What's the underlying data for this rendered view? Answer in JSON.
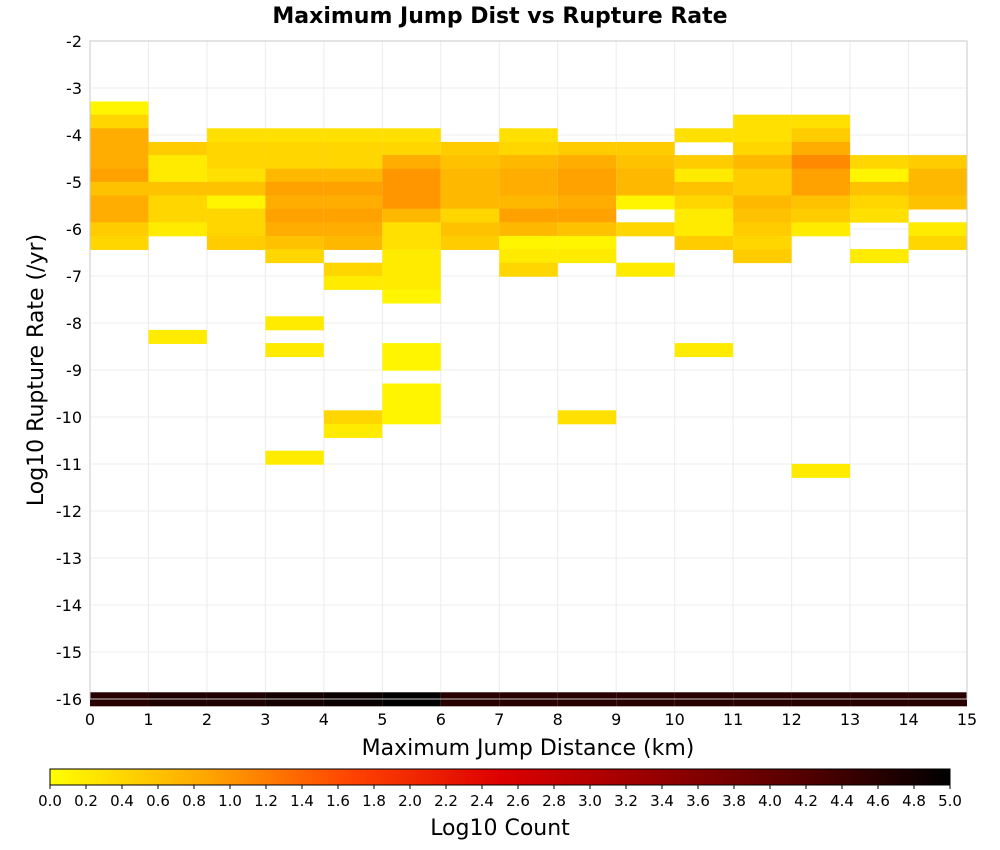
{
  "chart_data": {
    "type": "heatmap",
    "title": "Maximum Jump Dist vs Rupture Rate",
    "xlabel": "Maximum Jump Distance (km)",
    "ylabel": "Log10 Rupture Rate (/yr)",
    "xlim": [
      0,
      15
    ],
    "ylim": [
      -16,
      -2
    ],
    "x_ticks": [
      "0",
      "1",
      "2",
      "3",
      "4",
      "5",
      "6",
      "7",
      "8",
      "9",
      "10",
      "11",
      "12",
      "13",
      "14",
      "15"
    ],
    "y_ticks": [
      "-2",
      "-3",
      "-4",
      "-5",
      "-6",
      "-7",
      "-8",
      "-9",
      "-10",
      "-11",
      "-12",
      "-13",
      "-14",
      "-15",
      "-16"
    ],
    "grid": true,
    "x_bin_width": 1,
    "y_bin_height": 0.2857,
    "colorbar": {
      "label": "Log10 Count",
      "range": [
        0,
        5
      ],
      "ticks": [
        "0.0",
        "0.2",
        "0.4",
        "0.6",
        "0.8",
        "1.0",
        "1.2",
        "1.4",
        "1.6",
        "1.8",
        "2.0",
        "2.2",
        "2.4",
        "2.6",
        "2.8",
        "3.0",
        "3.2",
        "3.4",
        "3.6",
        "3.8",
        "4.0",
        "4.2",
        "4.4",
        "4.6",
        "4.8",
        "5.0"
      ],
      "colors": [
        "#ffff00",
        "#ffaa00",
        "#ff4400",
        "#dd0000",
        "#990000",
        "#550000",
        "#000000"
      ]
    },
    "cells": [
      {
        "x": 0,
        "y": -3.43,
        "v": 0.1
      },
      {
        "x": 0,
        "y": -3.71,
        "v": 0.4
      },
      {
        "x": 0,
        "y": -4.0,
        "v": 0.8
      },
      {
        "x": 0,
        "y": -4.29,
        "v": 0.8
      },
      {
        "x": 0,
        "y": -4.57,
        "v": 0.8
      },
      {
        "x": 0,
        "y": -4.86,
        "v": 0.9
      },
      {
        "x": 0,
        "y": -5.14,
        "v": 0.6
      },
      {
        "x": 0,
        "y": -5.43,
        "v": 0.8
      },
      {
        "x": 0,
        "y": -5.71,
        "v": 0.8
      },
      {
        "x": 0,
        "y": -6.0,
        "v": 0.5
      },
      {
        "x": 0,
        "y": -6.29,
        "v": 0.4
      },
      {
        "x": 0,
        "y": -16.0,
        "v": 4.6
      },
      {
        "x": 1,
        "y": -4.29,
        "v": 0.5
      },
      {
        "x": 1,
        "y": -4.57,
        "v": 0.2
      },
      {
        "x": 1,
        "y": -4.86,
        "v": 0.2
      },
      {
        "x": 1,
        "y": -5.14,
        "v": 0.6
      },
      {
        "x": 1,
        "y": -5.43,
        "v": 0.4
      },
      {
        "x": 1,
        "y": -5.71,
        "v": 0.4
      },
      {
        "x": 1,
        "y": -6.0,
        "v": 0.2
      },
      {
        "x": 1,
        "y": -8.29,
        "v": 0.2
      },
      {
        "x": 1,
        "y": -16.0,
        "v": 4.7
      },
      {
        "x": 2,
        "y": -4.0,
        "v": 0.3
      },
      {
        "x": 2,
        "y": -4.29,
        "v": 0.4
      },
      {
        "x": 2,
        "y": -4.57,
        "v": 0.4
      },
      {
        "x": 2,
        "y": -4.86,
        "v": 0.3
      },
      {
        "x": 2,
        "y": -5.14,
        "v": 0.6
      },
      {
        "x": 2,
        "y": -5.43,
        "v": 0.1
      },
      {
        "x": 2,
        "y": -5.71,
        "v": 0.4
      },
      {
        "x": 2,
        "y": -6.0,
        "v": 0.4
      },
      {
        "x": 2,
        "y": -6.29,
        "v": 0.5
      },
      {
        "x": 2,
        "y": -16.0,
        "v": 4.7
      },
      {
        "x": 3,
        "y": -4.0,
        "v": 0.3
      },
      {
        "x": 3,
        "y": -4.29,
        "v": 0.4
      },
      {
        "x": 3,
        "y": -4.57,
        "v": 0.4
      },
      {
        "x": 3,
        "y": -4.86,
        "v": 0.7
      },
      {
        "x": 3,
        "y": -5.14,
        "v": 0.9
      },
      {
        "x": 3,
        "y": -5.43,
        "v": 0.8
      },
      {
        "x": 3,
        "y": -5.71,
        "v": 0.9
      },
      {
        "x": 3,
        "y": -6.0,
        "v": 0.8
      },
      {
        "x": 3,
        "y": -6.29,
        "v": 0.6
      },
      {
        "x": 3,
        "y": -6.57,
        "v": 0.4
      },
      {
        "x": 3,
        "y": -8.0,
        "v": 0.2
      },
      {
        "x": 3,
        "y": -8.57,
        "v": 0.2
      },
      {
        "x": 3,
        "y": -10.86,
        "v": 0.2
      },
      {
        "x": 3,
        "y": -16.0,
        "v": 4.8
      },
      {
        "x": 4,
        "y": -4.0,
        "v": 0.3
      },
      {
        "x": 4,
        "y": -4.29,
        "v": 0.4
      },
      {
        "x": 4,
        "y": -4.57,
        "v": 0.4
      },
      {
        "x": 4,
        "y": -4.86,
        "v": 0.7
      },
      {
        "x": 4,
        "y": -5.14,
        "v": 0.9
      },
      {
        "x": 4,
        "y": -5.43,
        "v": 0.8
      },
      {
        "x": 4,
        "y": -5.71,
        "v": 0.9
      },
      {
        "x": 4,
        "y": -6.0,
        "v": 0.8
      },
      {
        "x": 4,
        "y": -6.29,
        "v": 0.7
      },
      {
        "x": 4,
        "y": -6.86,
        "v": 0.4
      },
      {
        "x": 4,
        "y": -7.14,
        "v": 0.2
      },
      {
        "x": 4,
        "y": -10.0,
        "v": 0.4
      },
      {
        "x": 4,
        "y": -10.29,
        "v": 0.2
      },
      {
        "x": 4,
        "y": -16.0,
        "v": 4.9
      },
      {
        "x": 5,
        "y": -4.0,
        "v": 0.3
      },
      {
        "x": 5,
        "y": -4.29,
        "v": 0.4
      },
      {
        "x": 5,
        "y": -4.57,
        "v": 0.8
      },
      {
        "x": 5,
        "y": -4.86,
        "v": 1.0
      },
      {
        "x": 5,
        "y": -5.14,
        "v": 1.0
      },
      {
        "x": 5,
        "y": -5.43,
        "v": 1.0
      },
      {
        "x": 5,
        "y": -5.71,
        "v": 0.7
      },
      {
        "x": 5,
        "y": -6.0,
        "v": 0.3
      },
      {
        "x": 5,
        "y": -6.29,
        "v": 0.3
      },
      {
        "x": 5,
        "y": -6.57,
        "v": 0.2
      },
      {
        "x": 5,
        "y": -6.86,
        "v": 0.2
      },
      {
        "x": 5,
        "y": -7.14,
        "v": 0.2
      },
      {
        "x": 5,
        "y": -7.43,
        "v": 0.1
      },
      {
        "x": 5,
        "y": -8.57,
        "v": 0.1
      },
      {
        "x": 5,
        "y": -8.86,
        "v": 0.1
      },
      {
        "x": 5,
        "y": -9.43,
        "v": 0.1
      },
      {
        "x": 5,
        "y": -9.71,
        "v": 0.1
      },
      {
        "x": 5,
        "y": -10.0,
        "v": 0.1
      },
      {
        "x": 5,
        "y": -16.0,
        "v": 5.0
      },
      {
        "x": 6,
        "y": -4.29,
        "v": 0.5
      },
      {
        "x": 6,
        "y": -4.57,
        "v": 0.6
      },
      {
        "x": 6,
        "y": -4.86,
        "v": 0.7
      },
      {
        "x": 6,
        "y": -5.14,
        "v": 0.7
      },
      {
        "x": 6,
        "y": -5.43,
        "v": 0.7
      },
      {
        "x": 6,
        "y": -5.71,
        "v": 0.4
      },
      {
        "x": 6,
        "y": -6.0,
        "v": 0.6
      },
      {
        "x": 6,
        "y": -6.29,
        "v": 0.5
      },
      {
        "x": 6,
        "y": -16.0,
        "v": 4.6
      },
      {
        "x": 7,
        "y": -4.0,
        "v": 0.3
      },
      {
        "x": 7,
        "y": -4.29,
        "v": 0.4
      },
      {
        "x": 7,
        "y": -4.57,
        "v": 0.7
      },
      {
        "x": 7,
        "y": -4.86,
        "v": 0.8
      },
      {
        "x": 7,
        "y": -5.14,
        "v": 0.8
      },
      {
        "x": 7,
        "y": -5.43,
        "v": 0.7
      },
      {
        "x": 7,
        "y": -5.71,
        "v": 0.9
      },
      {
        "x": 7,
        "y": -6.0,
        "v": 0.7
      },
      {
        "x": 7,
        "y": -6.29,
        "v": 0.1
      },
      {
        "x": 7,
        "y": -6.57,
        "v": 0.2
      },
      {
        "x": 7,
        "y": -6.86,
        "v": 0.4
      },
      {
        "x": 7,
        "y": -16.0,
        "v": 4.6
      },
      {
        "x": 8,
        "y": -4.29,
        "v": 0.5
      },
      {
        "x": 8,
        "y": -4.57,
        "v": 0.8
      },
      {
        "x": 8,
        "y": -4.86,
        "v": 0.9
      },
      {
        "x": 8,
        "y": -5.14,
        "v": 0.9
      },
      {
        "x": 8,
        "y": -5.43,
        "v": 0.8
      },
      {
        "x": 8,
        "y": -5.71,
        "v": 0.9
      },
      {
        "x": 8,
        "y": -6.0,
        "v": 0.6
      },
      {
        "x": 8,
        "y": -6.29,
        "v": 0.1
      },
      {
        "x": 8,
        "y": -6.57,
        "v": 0.2
      },
      {
        "x": 8,
        "y": -10.0,
        "v": 0.3
      },
      {
        "x": 8,
        "y": -16.0,
        "v": 4.6
      },
      {
        "x": 9,
        "y": -4.29,
        "v": 0.5
      },
      {
        "x": 9,
        "y": -4.57,
        "v": 0.6
      },
      {
        "x": 9,
        "y": -4.86,
        "v": 0.7
      },
      {
        "x": 9,
        "y": -5.14,
        "v": 0.7
      },
      {
        "x": 9,
        "y": -5.43,
        "v": 0.1
      },
      {
        "x": 9,
        "y": -6.0,
        "v": 0.4
      },
      {
        "x": 9,
        "y": -6.86,
        "v": 0.2
      },
      {
        "x": 9,
        "y": -16.0,
        "v": 4.6
      },
      {
        "x": 10,
        "y": -4.0,
        "v": 0.3
      },
      {
        "x": 10,
        "y": -4.57,
        "v": 0.5
      },
      {
        "x": 10,
        "y": -4.86,
        "v": 0.2
      },
      {
        "x": 10,
        "y": -5.14,
        "v": 0.6
      },
      {
        "x": 10,
        "y": -5.43,
        "v": 0.4
      },
      {
        "x": 10,
        "y": -5.71,
        "v": 0.2
      },
      {
        "x": 10,
        "y": -6.0,
        "v": 0.2
      },
      {
        "x": 10,
        "y": -6.29,
        "v": 0.5
      },
      {
        "x": 10,
        "y": -8.57,
        "v": 0.2
      },
      {
        "x": 10,
        "y": -16.0,
        "v": 4.6
      },
      {
        "x": 11,
        "y": -3.71,
        "v": 0.3
      },
      {
        "x": 11,
        "y": -4.0,
        "v": 0.3
      },
      {
        "x": 11,
        "y": -4.29,
        "v": 0.4
      },
      {
        "x": 11,
        "y": -4.57,
        "v": 0.7
      },
      {
        "x": 11,
        "y": -4.86,
        "v": 0.5
      },
      {
        "x": 11,
        "y": -5.14,
        "v": 0.5
      },
      {
        "x": 11,
        "y": -5.43,
        "v": 0.7
      },
      {
        "x": 11,
        "y": -5.71,
        "v": 0.6
      },
      {
        "x": 11,
        "y": -6.0,
        "v": 0.5
      },
      {
        "x": 11,
        "y": -6.29,
        "v": 0.4
      },
      {
        "x": 11,
        "y": -6.57,
        "v": 0.5
      },
      {
        "x": 11,
        "y": -16.0,
        "v": 4.6
      },
      {
        "x": 12,
        "y": -3.71,
        "v": 0.3
      },
      {
        "x": 12,
        "y": -4.0,
        "v": 0.5
      },
      {
        "x": 12,
        "y": -4.29,
        "v": 0.8
      },
      {
        "x": 12,
        "y": -4.57,
        "v": 1.1
      },
      {
        "x": 12,
        "y": -4.86,
        "v": 0.9
      },
      {
        "x": 12,
        "y": -5.14,
        "v": 0.9
      },
      {
        "x": 12,
        "y": -5.43,
        "v": 0.6
      },
      {
        "x": 12,
        "y": -5.71,
        "v": 0.5
      },
      {
        "x": 12,
        "y": -6.0,
        "v": 0.2
      },
      {
        "x": 12,
        "y": -11.14,
        "v": 0.2
      },
      {
        "x": 12,
        "y": -16.0,
        "v": 4.6
      },
      {
        "x": 13,
        "y": -4.57,
        "v": 0.4
      },
      {
        "x": 13,
        "y": -4.86,
        "v": 0.1
      },
      {
        "x": 13,
        "y": -5.14,
        "v": 0.6
      },
      {
        "x": 13,
        "y": -5.43,
        "v": 0.4
      },
      {
        "x": 13,
        "y": -5.71,
        "v": 0.3
      },
      {
        "x": 13,
        "y": -6.57,
        "v": 0.2
      },
      {
        "x": 13,
        "y": -16.0,
        "v": 4.6
      },
      {
        "x": 14,
        "y": -4.57,
        "v": 0.5
      },
      {
        "x": 14,
        "y": -4.86,
        "v": 0.7
      },
      {
        "x": 14,
        "y": -5.14,
        "v": 0.7
      },
      {
        "x": 14,
        "y": -5.43,
        "v": 0.6
      },
      {
        "x": 14,
        "y": -6.0,
        "v": 0.2
      },
      {
        "x": 14,
        "y": -6.29,
        "v": 0.4
      },
      {
        "x": 14,
        "y": -16.0,
        "v": 4.6
      }
    ]
  }
}
